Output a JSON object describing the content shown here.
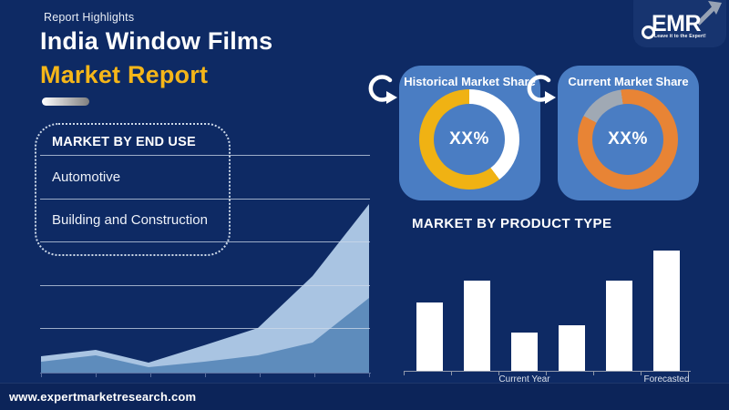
{
  "page": {
    "background": "#0e2a64",
    "footer_url": "www.expertmarketresearch.com"
  },
  "header": {
    "eyebrow": "Report Highlights",
    "title_line1": "India Window Films",
    "title_line2": "Market Report",
    "accent_color": "#f5b619"
  },
  "logo": {
    "brand": "EMR",
    "tagline": "Leave it to the Expert!"
  },
  "end_use_panel": {
    "title": "MARKET BY END USE",
    "items": [
      {
        "label": "Automotive"
      },
      {
        "label": "Building and Construction"
      }
    ]
  },
  "donut_cards": [
    {
      "title": "Historical Market Share",
      "center_label": "XX%",
      "card_color": "#4a7dc3",
      "stops": [
        {
          "name": "remainder",
          "color": "#ffffff",
          "to": 143
        },
        {
          "name": "historical-share",
          "color": "#f0b213",
          "to": 360
        }
      ]
    },
    {
      "title": "Current Market Share",
      "center_label": "XX%",
      "card_color": "#4a7dc3",
      "stops": [
        {
          "name": "current-share",
          "color": "#e88435",
          "to": 298
        },
        {
          "name": "remainder",
          "color": "#a0a9b4",
          "to": 352
        },
        {
          "name": "current-share",
          "color": "#e88435",
          "to": 360
        }
      ]
    }
  ],
  "product_chart": {
    "title": "MARKET BY PRODUCT TYPE"
  },
  "chart_data": [
    {
      "type": "pie",
      "subtype": "donut",
      "title": "Historical Market Share",
      "labels": [
        "Historical market share",
        "Remainder"
      ],
      "values": [
        60,
        40
      ],
      "colors": [
        "#f0b213",
        "#ffffff"
      ],
      "center_label": "XX%",
      "legend_position": "none"
    },
    {
      "type": "pie",
      "subtype": "donut",
      "title": "Current Market Share",
      "labels": [
        "Current market share",
        "Remainder"
      ],
      "values": [
        85,
        15
      ],
      "colors": [
        "#e88435",
        "#a0a9b4"
      ],
      "center_label": "XX%",
      "legend_position": "none"
    },
    {
      "type": "bar",
      "title": "MARKET BY PRODUCT TYPE",
      "categories": [
        "",
        "",
        "Current Year",
        "",
        "",
        "Forecasted Year"
      ],
      "values": [
        57,
        75,
        32,
        38,
        75,
        100
      ],
      "bar_color": "#ffffff",
      "ylabel": "",
      "ylim": [
        0,
        105
      ],
      "grid": false,
      "note": "y-axis unlabeled in source; values are relative heights with tallest bar = 100"
    },
    {
      "type": "area",
      "title": "",
      "x": [
        0,
        1,
        2,
        3,
        4,
        5,
        6
      ],
      "series": [
        {
          "name": "upper",
          "values": [
            18,
            25,
            11,
            30,
            49,
            106,
            185
          ]
        },
        {
          "name": "lower",
          "values": [
            12,
            19,
            6,
            12,
            19,
            33,
            82
          ]
        }
      ],
      "colors": [
        "#a9c4e2",
        "#5e8cbc"
      ],
      "grid": true,
      "note": "decorative background growth trend, axes unlabeled"
    }
  ]
}
